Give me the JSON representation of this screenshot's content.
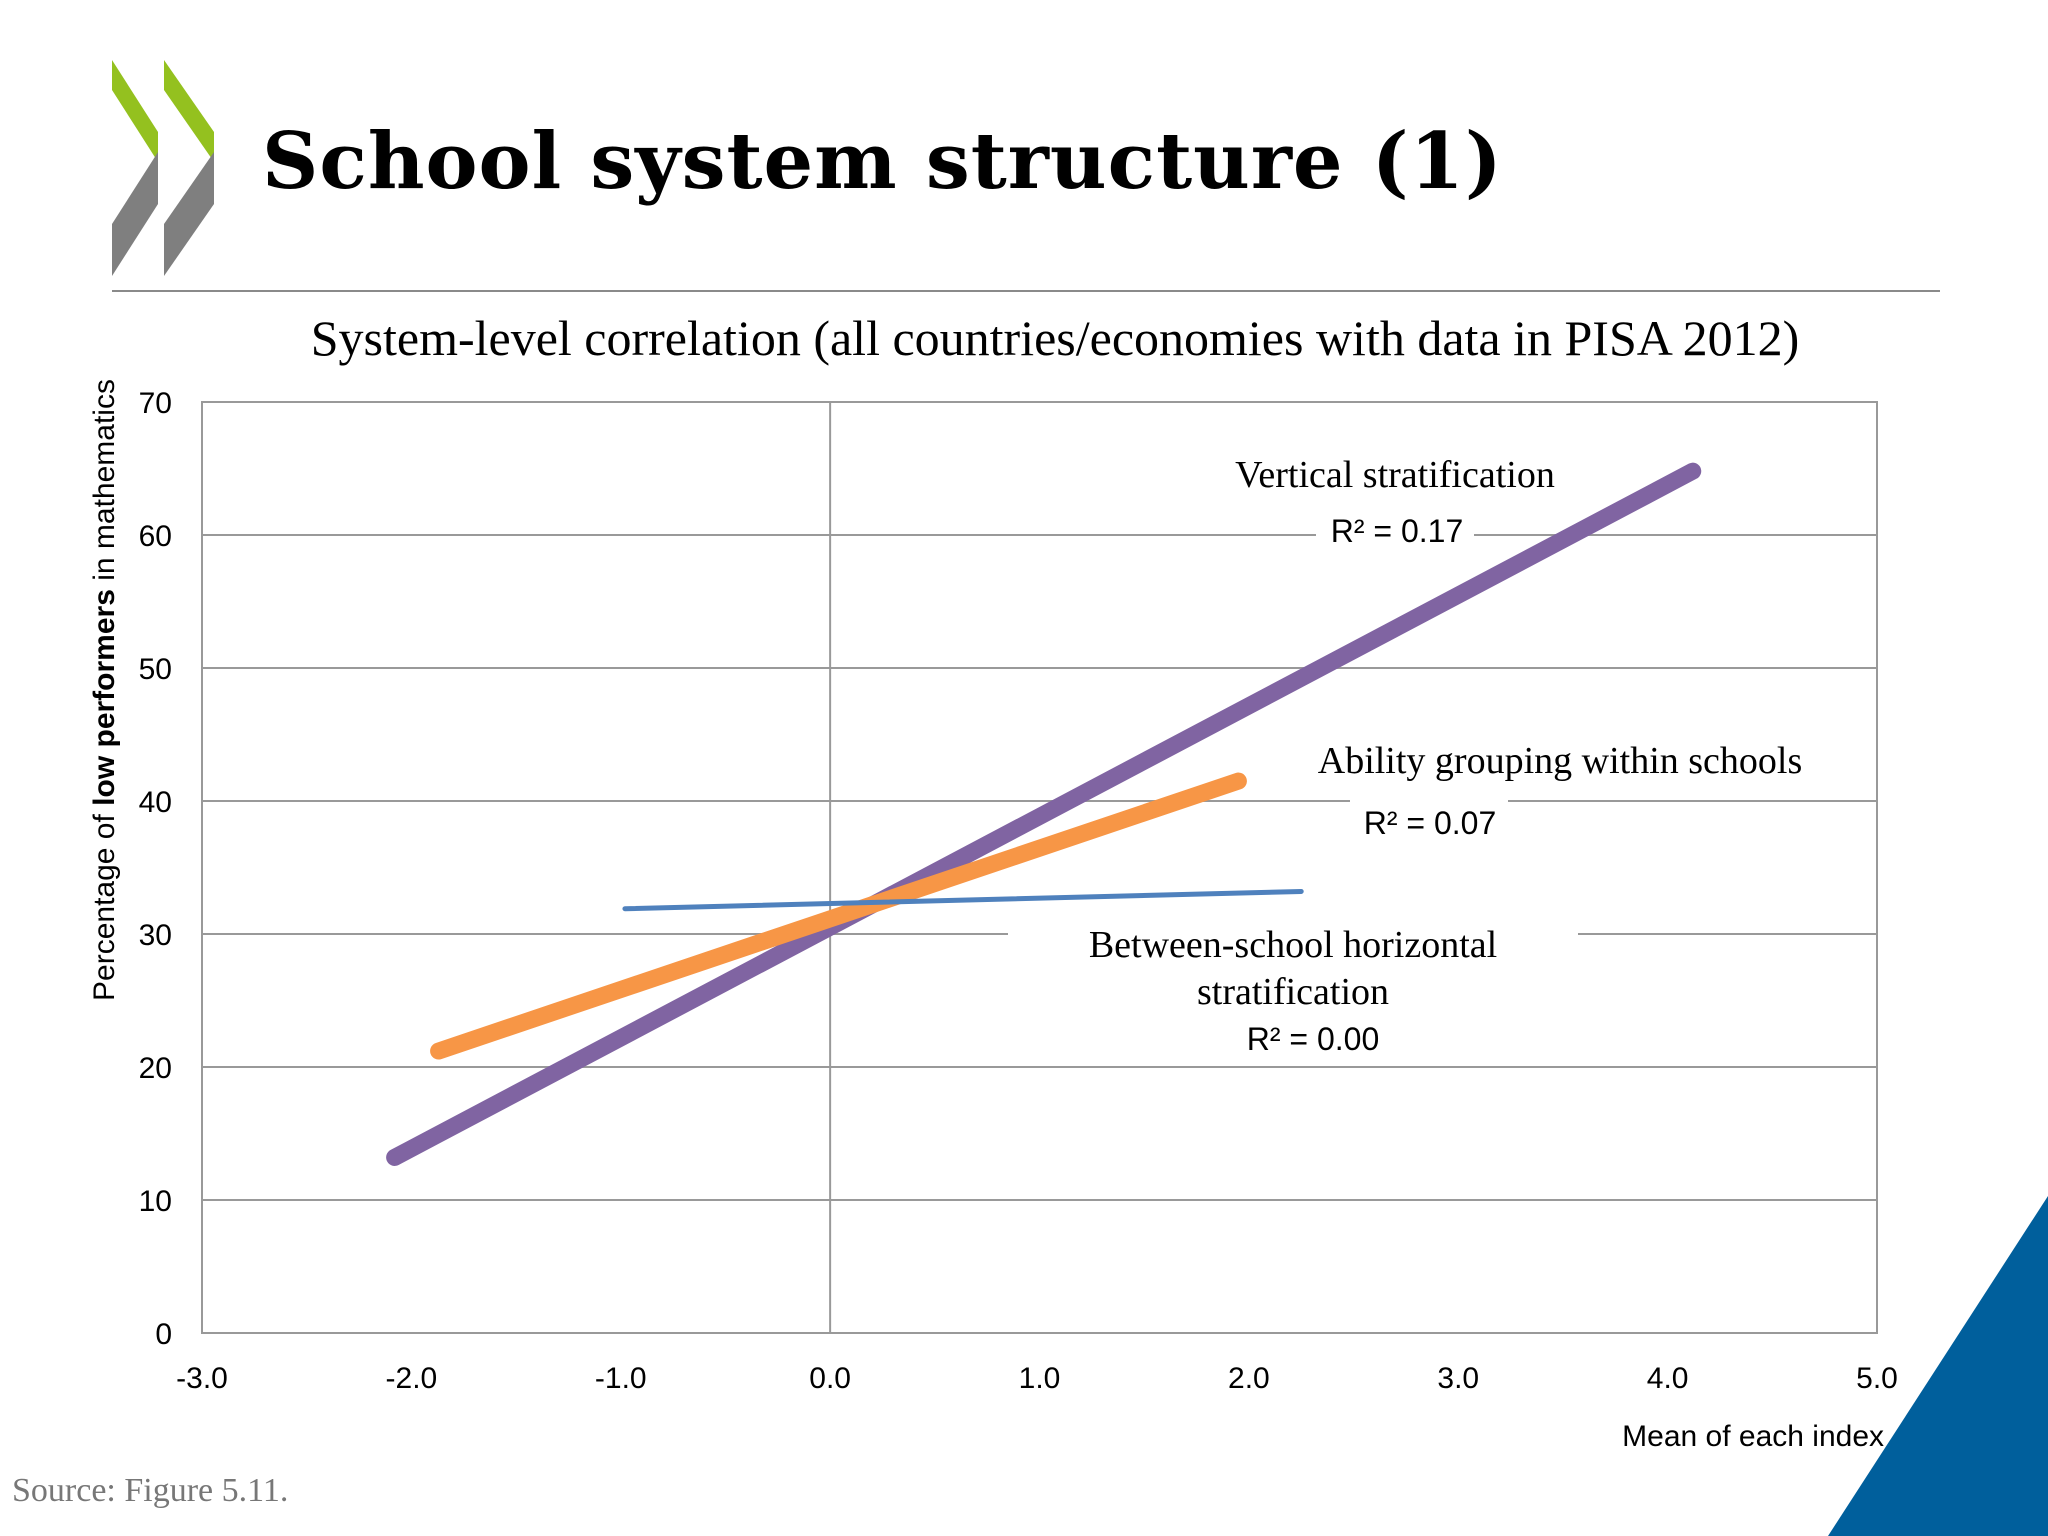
{
  "slide": {
    "title": "School system structure (1)",
    "source": "Source: Figure 5.11."
  },
  "colors": {
    "logo_green": "#94c11f",
    "logo_gray": "#7f7f7f",
    "accent_blue": "#005f9c",
    "vertical": "#8064a2",
    "ability": "#f79646",
    "horizontal": "#4f81bd"
  },
  "chart_data": {
    "type": "line",
    "title": "System-level correlation (all countries/economies with data in PISA 2012)",
    "xlabel": "Mean of each index",
    "ylabel_parts": [
      "Percentage of ",
      "low performers",
      " in mathematics"
    ],
    "xlim": [
      -3.0,
      5.0
    ],
    "ylim": [
      0,
      70
    ],
    "x_ticks": [
      "-3.0",
      "-2.0",
      "-1.0",
      "0.0",
      "1.0",
      "2.0",
      "3.0",
      "4.0",
      "5.0"
    ],
    "y_ticks": [
      "0",
      "10",
      "20",
      "30",
      "40",
      "50",
      "60",
      "70"
    ],
    "grid": true,
    "series": [
      {
        "name": "Vertical stratification",
        "r2": "R² = 0.17",
        "color": "#8064a2",
        "x": [
          -2.08,
          4.12
        ],
        "y": [
          13.2,
          64.8
        ]
      },
      {
        "name": "Ability grouping within schools",
        "r2": "R² = 0.07",
        "color": "#f79646",
        "x": [
          -1.87,
          1.95
        ],
        "y": [
          21.2,
          41.5
        ]
      },
      {
        "name": "Between-school horizontal stratification",
        "name_lines": [
          "Between-school horizontal",
          "stratification"
        ],
        "r2": "R² = 0.00",
        "color": "#4f81bd",
        "x": [
          -0.98,
          2.25
        ],
        "y": [
          31.9,
          33.2
        ]
      }
    ]
  }
}
